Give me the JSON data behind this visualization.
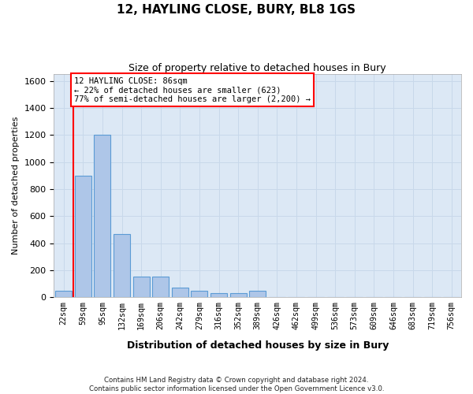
{
  "title": "12, HAYLING CLOSE, BURY, BL8 1GS",
  "subtitle": "Size of property relative to detached houses in Bury",
  "xlabel": "Distribution of detached houses by size in Bury",
  "ylabel": "Number of detached properties",
  "footnote1": "Contains HM Land Registry data © Crown copyright and database right 2024.",
  "footnote2": "Contains public sector information licensed under the Open Government Licence v3.0.",
  "bins": [
    "22sqm",
    "59sqm",
    "95sqm",
    "132sqm",
    "169sqm",
    "206sqm",
    "242sqm",
    "279sqm",
    "316sqm",
    "352sqm",
    "389sqm",
    "426sqm",
    "462sqm",
    "499sqm",
    "536sqm",
    "573sqm",
    "609sqm",
    "646sqm",
    "683sqm",
    "719sqm",
    "756sqm"
  ],
  "bar_values": [
    50,
    900,
    1200,
    470,
    155,
    155,
    72,
    48,
    28,
    28,
    48,
    0,
    0,
    0,
    0,
    0,
    0,
    0,
    0,
    0,
    0
  ],
  "bar_color": "#aec6e8",
  "bar_edge_color": "#5b9bd5",
  "grid_color": "#c8d8ea",
  "background_color": "#dce8f5",
  "property_line_x": 0.5,
  "annotation_text": "12 HAYLING CLOSE: 86sqm\n← 22% of detached houses are smaller (623)\n77% of semi-detached houses are larger (2,200) →",
  "annotation_box_color": "white",
  "annotation_box_edge": "red",
  "annotation_line_color": "red",
  "ylim": [
    0,
    1650
  ],
  "yticks": [
    0,
    200,
    400,
    600,
    800,
    1000,
    1200,
    1400,
    1600
  ]
}
